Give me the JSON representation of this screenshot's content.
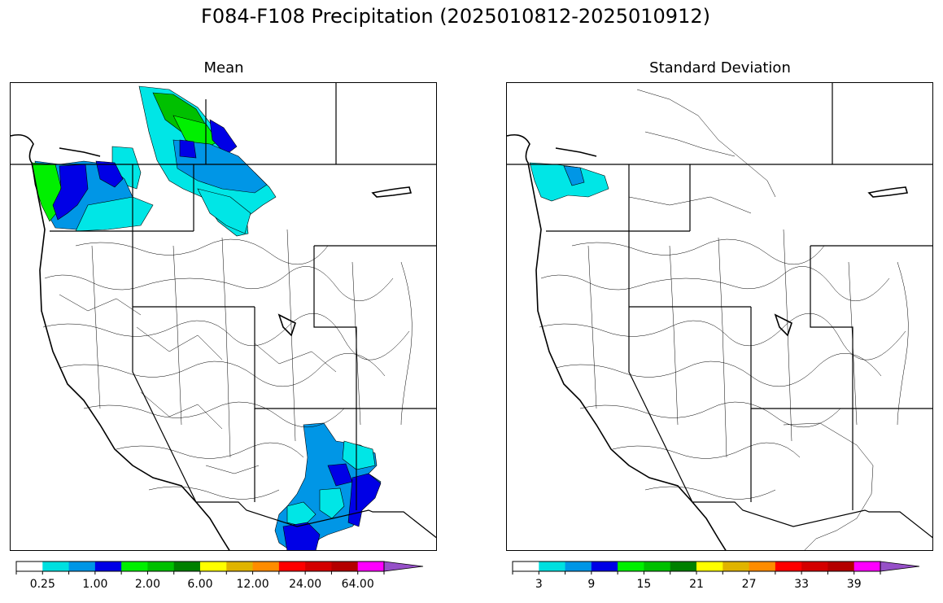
{
  "title": "F084-F108 Precipitation (2025010812-2025010912)",
  "panels": [
    {
      "id": "mean",
      "title": "Mean",
      "colorbar": {
        "colors": [
          "#ffffff",
          "#00e0e0",
          "#0096e6",
          "#0000e6",
          "#00f000",
          "#00c000",
          "#008000",
          "#ffff00",
          "#e0b400",
          "#ff8c00",
          "#ff0000",
          "#d40000",
          "#b40000",
          "#ff00ff",
          "#9650c8"
        ],
        "tick_labels": [
          "0.25",
          "1.00",
          "2.00",
          "6.00",
          "12.00",
          "24.00",
          "64.00"
        ],
        "extend": "max"
      }
    },
    {
      "id": "stddev",
      "title": "Standard Deviation",
      "colorbar": {
        "colors": [
          "#ffffff",
          "#00e0e0",
          "#0096e6",
          "#0000e6",
          "#00f000",
          "#00c000",
          "#008000",
          "#ffff00",
          "#e0b400",
          "#ff8c00",
          "#ff0000",
          "#d40000",
          "#b40000",
          "#ff00ff",
          "#9650c8"
        ],
        "tick_labels": [
          "3",
          "9",
          "15",
          "21",
          "27",
          "33",
          "39"
        ],
        "extend": "max"
      }
    }
  ]
}
